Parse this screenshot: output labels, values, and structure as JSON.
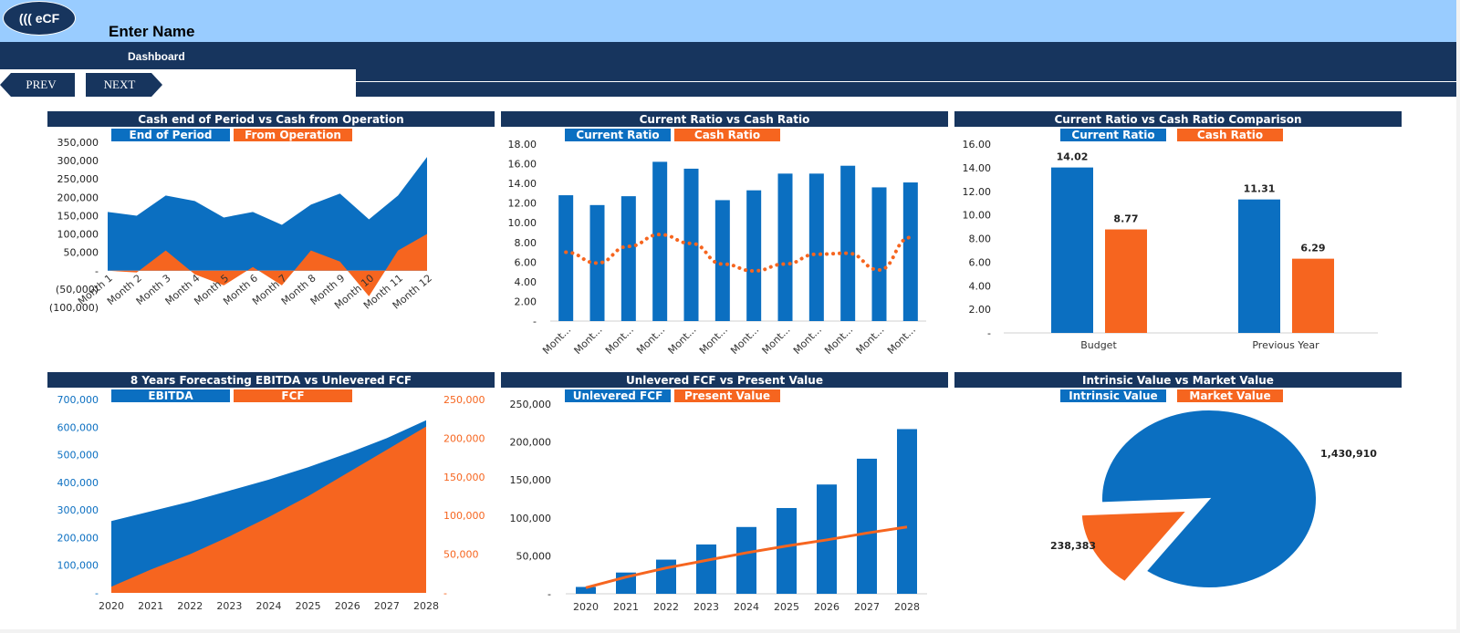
{
  "app": {
    "logo_text": "((( eCF",
    "title": "Enter Name",
    "sheet_name": "Dashboard",
    "prev_label": "PREV",
    "next_label": "NEXT"
  },
  "colors": {
    "primary_blue": "#0b6fc1",
    "accent_orange": "#f6651f",
    "navy": "#17355e",
    "light_blue": "#99ccff"
  },
  "chart_data": [
    {
      "id": "c1",
      "type": "area",
      "title": "Cash end of Period vs Cash from Operation",
      "categories": [
        "Month 1",
        "Month 2",
        "Month 3",
        "Month 4",
        "Month 5",
        "Month 6",
        "Month 7",
        "Month 8",
        "Month 9",
        "Month 10",
        "Month 11",
        "Month 12"
      ],
      "series": [
        {
          "name": "End of Period",
          "values": [
            160000,
            150000,
            205000,
            190000,
            145000,
            160000,
            125000,
            180000,
            210000,
            140000,
            205000,
            310000
          ]
        },
        {
          "name": "From Operation",
          "values": [
            0,
            -5000,
            55000,
            -10000,
            -40000,
            10000,
            -40000,
            55000,
            25000,
            -70000,
            55000,
            100000
          ]
        }
      ],
      "ylim": [
        -100000,
        350000
      ],
      "yticks": [
        "(100,000)",
        "(50,000)",
        "-",
        "50,000",
        "100,000",
        "150,000",
        "200,000",
        "250,000",
        "300,000",
        "350,000"
      ],
      "legend": "top"
    },
    {
      "id": "c2",
      "type": "bar",
      "title": "Current Ratio vs Cash Ratio",
      "categories": [
        "Mont...",
        "Mont...",
        "Mont...",
        "Mont...",
        "Mont...",
        "Mont...",
        "Mont...",
        "Mont...",
        "Mont...",
        "Mont...",
        "Mont...",
        "Mont..."
      ],
      "series": [
        {
          "name": "Current Ratio",
          "values": [
            12.8,
            11.8,
            12.7,
            16.2,
            15.5,
            12.3,
            13.3,
            15.0,
            15.0,
            15.8,
            13.6,
            14.1
          ]
        },
        {
          "name": "Cash Ratio",
          "values": [
            7.0,
            5.9,
            7.6,
            8.8,
            7.9,
            5.8,
            5.1,
            5.8,
            6.8,
            6.9,
            5.2,
            8.5
          ]
        }
      ],
      "ylim": [
        0,
        18
      ],
      "yticks": [
        "-",
        "2.00",
        "4.00",
        "6.00",
        "8.00",
        "10.00",
        "12.00",
        "14.00",
        "16.00",
        "18.00"
      ],
      "legend": "top"
    },
    {
      "id": "c3",
      "type": "bar",
      "title": "Current Ratio vs Cash Ratio Comparison",
      "categories": [
        "Budget",
        "Previous Year"
      ],
      "series": [
        {
          "name": "Current Ratio",
          "values": [
            14.02,
            11.31
          ]
        },
        {
          "name": "Cash Ratio",
          "values": [
            8.77,
            6.29
          ]
        }
      ],
      "data_labels": [
        [
          "14.02",
          "11.31"
        ],
        [
          "8.77",
          "6.29"
        ]
      ],
      "ylim": [
        0,
        16
      ],
      "yticks": [
        "-",
        "2.00",
        "4.00",
        "6.00",
        "8.00",
        "10.00",
        "12.00",
        "14.00",
        "16.00"
      ],
      "legend": "top"
    },
    {
      "id": "c4",
      "type": "area",
      "title": "8 Years Forecasting EBITDA vs Unlevered FCF",
      "categories": [
        "2020",
        "2021",
        "2022",
        "2023",
        "2024",
        "2025",
        "2026",
        "2027",
        "2028"
      ],
      "series": [
        {
          "name": "EBITDA",
          "axis": "left",
          "values": [
            260000,
            295000,
            330000,
            370000,
            410000,
            455000,
            505000,
            560000,
            625000
          ]
        },
        {
          "name": "FCF",
          "axis": "right",
          "values": [
            8000,
            30000,
            50000,
            73000,
            98000,
            125000,
            155000,
            185000,
            215000
          ]
        }
      ],
      "ylim_left": [
        0,
        700000
      ],
      "ylim_right": [
        0,
        250000
      ],
      "yticks_left": [
        "-",
        "100,000",
        "200,000",
        "300,000",
        "400,000",
        "500,000",
        "600,000",
        "700,000"
      ],
      "yticks_right": [
        "-",
        "50,000",
        "100,000",
        "150,000",
        "200,000",
        "250,000"
      ],
      "legend": "top"
    },
    {
      "id": "c5",
      "type": "bar",
      "title": "Unlevered FCF vs Present Value",
      "categories": [
        "2020",
        "2021",
        "2022",
        "2023",
        "2024",
        "2025",
        "2026",
        "2027",
        "2028"
      ],
      "series": [
        {
          "name": "Unlevered FCF",
          "values": [
            9000,
            28000,
            45000,
            65000,
            88000,
            113000,
            144000,
            178000,
            217000
          ]
        },
        {
          "name": "Present Value",
          "values": [
            8000,
            22000,
            34000,
            44000,
            54000,
            63000,
            71000,
            80000,
            88000
          ]
        }
      ],
      "ylim": [
        0,
        250000
      ],
      "yticks": [
        "-",
        "50,000",
        "100,000",
        "150,000",
        "200,000",
        "250,000"
      ],
      "legend": "top"
    },
    {
      "id": "c6",
      "type": "pie",
      "title": "Intrinsic Value vs Market Value",
      "series": [
        {
          "name": "Intrinsic Value",
          "value": 1430910,
          "label": "1,430,910"
        },
        {
          "name": "Market Value",
          "value": 238383,
          "label": "238,383"
        }
      ],
      "legend": "top"
    }
  ]
}
